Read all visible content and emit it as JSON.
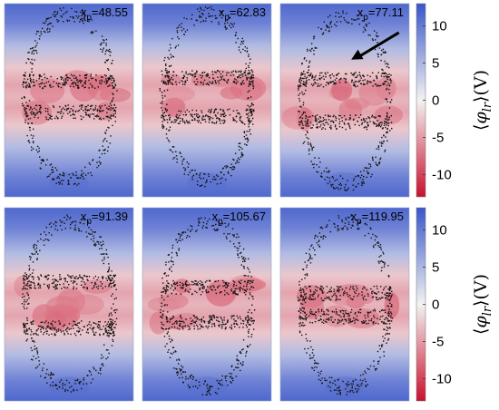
{
  "chart_data": {
    "type": "heatmap",
    "title": "",
    "layout": "2 rows x 3 columns of field snapshots with particle overlays",
    "colormap": {
      "name": "diverging red-white-blue",
      "low_color": "#c8102e",
      "mid_color": "#f3f2f1",
      "high_color": "#3a56c9",
      "range": [
        -13,
        13
      ]
    },
    "colorbar": {
      "label_parts": [
        "⟨",
        "φ",
        "lr",
        "⟩(V)"
      ],
      "ticks": [
        10,
        5,
        0,
        -5,
        -10
      ],
      "tick_labels": [
        "10",
        "5",
        "0",
        "-5",
        "-10"
      ]
    },
    "panels": [
      {
        "label_main": "x",
        "label_sub": "p",
        "value": "=48.55",
        "row": 0,
        "col": 0,
        "band_center": 0.48,
        "band_offset": 0.08
      },
      {
        "label_main": "x",
        "label_sub": "p",
        "value": "=62.83",
        "row": 0,
        "col": 1,
        "band_center": 0.48,
        "band_offset": 0.1
      },
      {
        "label_main": "x",
        "label_sub": "p",
        "value": "=77.11",
        "row": 0,
        "col": 2,
        "band_center": 0.5,
        "band_offset": 0.11,
        "annotation": "arrow"
      },
      {
        "label_main": "x",
        "label_sub": "p",
        "value": "=91.39",
        "row": 1,
        "col": 0,
        "band_center": 0.5,
        "band_offset": 0.12
      },
      {
        "label_main": "x",
        "label_sub": "p",
        "value": "=105.67",
        "row": 1,
        "col": 1,
        "band_center": 0.5,
        "band_offset": 0.09
      },
      {
        "label_main": "x",
        "label_sub": "p",
        "value": "=119.95",
        "row": 1,
        "col": 2,
        "band_center": 0.5,
        "band_offset": 0.06
      }
    ]
  }
}
